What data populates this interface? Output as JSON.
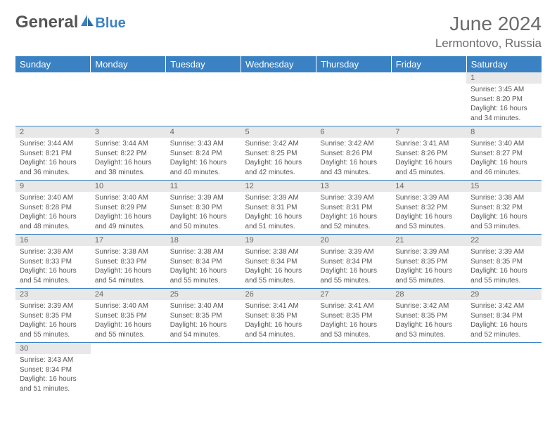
{
  "brand": {
    "part1": "General",
    "part2": "Blue",
    "color1": "#555555",
    "color2": "#3b82c4"
  },
  "title": "June 2024",
  "location": "Lermontovo, Russia",
  "weekdays": [
    "Sunday",
    "Monday",
    "Tuesday",
    "Wednesday",
    "Thursday",
    "Friday",
    "Saturday"
  ],
  "headerBg": "#3b82c4",
  "dayBarBg": "#e8e8e8",
  "textColor": "#555555",
  "days": [
    {
      "n": 1,
      "sr": "3:45 AM",
      "ss": "8:20 PM",
      "dl": "16 hours and 34 minutes."
    },
    {
      "n": 2,
      "sr": "3:44 AM",
      "ss": "8:21 PM",
      "dl": "16 hours and 36 minutes."
    },
    {
      "n": 3,
      "sr": "3:44 AM",
      "ss": "8:22 PM",
      "dl": "16 hours and 38 minutes."
    },
    {
      "n": 4,
      "sr": "3:43 AM",
      "ss": "8:24 PM",
      "dl": "16 hours and 40 minutes."
    },
    {
      "n": 5,
      "sr": "3:42 AM",
      "ss": "8:25 PM",
      "dl": "16 hours and 42 minutes."
    },
    {
      "n": 6,
      "sr": "3:42 AM",
      "ss": "8:26 PM",
      "dl": "16 hours and 43 minutes."
    },
    {
      "n": 7,
      "sr": "3:41 AM",
      "ss": "8:26 PM",
      "dl": "16 hours and 45 minutes."
    },
    {
      "n": 8,
      "sr": "3:40 AM",
      "ss": "8:27 PM",
      "dl": "16 hours and 46 minutes."
    },
    {
      "n": 9,
      "sr": "3:40 AM",
      "ss": "8:28 PM",
      "dl": "16 hours and 48 minutes."
    },
    {
      "n": 10,
      "sr": "3:40 AM",
      "ss": "8:29 PM",
      "dl": "16 hours and 49 minutes."
    },
    {
      "n": 11,
      "sr": "3:39 AM",
      "ss": "8:30 PM",
      "dl": "16 hours and 50 minutes."
    },
    {
      "n": 12,
      "sr": "3:39 AM",
      "ss": "8:31 PM",
      "dl": "16 hours and 51 minutes."
    },
    {
      "n": 13,
      "sr": "3:39 AM",
      "ss": "8:31 PM",
      "dl": "16 hours and 52 minutes."
    },
    {
      "n": 14,
      "sr": "3:39 AM",
      "ss": "8:32 PM",
      "dl": "16 hours and 53 minutes."
    },
    {
      "n": 15,
      "sr": "3:38 AM",
      "ss": "8:32 PM",
      "dl": "16 hours and 53 minutes."
    },
    {
      "n": 16,
      "sr": "3:38 AM",
      "ss": "8:33 PM",
      "dl": "16 hours and 54 minutes."
    },
    {
      "n": 17,
      "sr": "3:38 AM",
      "ss": "8:33 PM",
      "dl": "16 hours and 54 minutes."
    },
    {
      "n": 18,
      "sr": "3:38 AM",
      "ss": "8:34 PM",
      "dl": "16 hours and 55 minutes."
    },
    {
      "n": 19,
      "sr": "3:38 AM",
      "ss": "8:34 PM",
      "dl": "16 hours and 55 minutes."
    },
    {
      "n": 20,
      "sr": "3:39 AM",
      "ss": "8:34 PM",
      "dl": "16 hours and 55 minutes."
    },
    {
      "n": 21,
      "sr": "3:39 AM",
      "ss": "8:35 PM",
      "dl": "16 hours and 55 minutes."
    },
    {
      "n": 22,
      "sr": "3:39 AM",
      "ss": "8:35 PM",
      "dl": "16 hours and 55 minutes."
    },
    {
      "n": 23,
      "sr": "3:39 AM",
      "ss": "8:35 PM",
      "dl": "16 hours and 55 minutes."
    },
    {
      "n": 24,
      "sr": "3:40 AM",
      "ss": "8:35 PM",
      "dl": "16 hours and 55 minutes."
    },
    {
      "n": 25,
      "sr": "3:40 AM",
      "ss": "8:35 PM",
      "dl": "16 hours and 54 minutes."
    },
    {
      "n": 26,
      "sr": "3:41 AM",
      "ss": "8:35 PM",
      "dl": "16 hours and 54 minutes."
    },
    {
      "n": 27,
      "sr": "3:41 AM",
      "ss": "8:35 PM",
      "dl": "16 hours and 53 minutes."
    },
    {
      "n": 28,
      "sr": "3:42 AM",
      "ss": "8:35 PM",
      "dl": "16 hours and 53 minutes."
    },
    {
      "n": 29,
      "sr": "3:42 AM",
      "ss": "8:34 PM",
      "dl": "16 hours and 52 minutes."
    },
    {
      "n": 30,
      "sr": "3:43 AM",
      "ss": "8:34 PM",
      "dl": "16 hours and 51 minutes."
    }
  ],
  "labels": {
    "sunrise": "Sunrise:",
    "sunset": "Sunset:",
    "daylight": "Daylight:"
  },
  "firstDayOffset": 6
}
